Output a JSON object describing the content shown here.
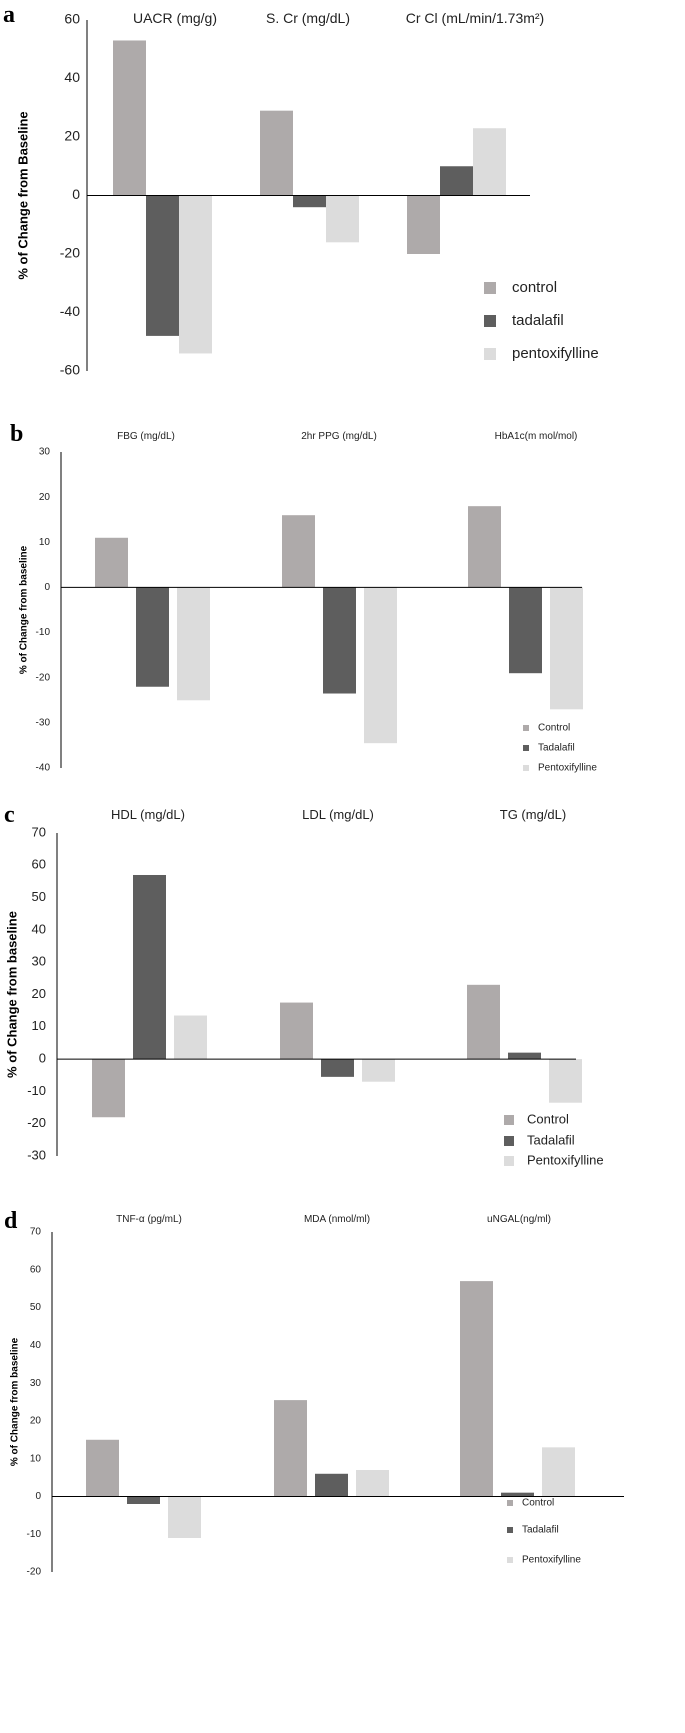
{
  "colors": {
    "control": "#aeaaaa",
    "tadalafil": "#5e5e5e",
    "pentoxifylline": "#dcdcdc",
    "axis": "#000000",
    "text": "#222222"
  },
  "chart_data": [
    {
      "type": "bar",
      "panel": "a",
      "categories": [
        "UACR (mg/g)",
        "S. Cr (mg/dL)",
        "Cr Cl (mL/min/1.73m²)"
      ],
      "series": [
        {
          "name": "control",
          "values": [
            53,
            29,
            -20
          ]
        },
        {
          "name": "tadalafil",
          "values": [
            -48,
            -4,
            10
          ]
        },
        {
          "name": "pentoxifylline",
          "values": [
            -54,
            -16,
            23
          ]
        }
      ],
      "title": "",
      "xlabel": "",
      "ylabel": "% of Change from Baseline",
      "ylim": [
        -60,
        60
      ],
      "yticks": [
        60,
        40,
        20,
        0,
        -20,
        -40,
        -60
      ],
      "legend": "bottom-right",
      "grid": false
    },
    {
      "type": "bar",
      "panel": "b",
      "categories": [
        "FBG (mg/dL)",
        "2hr PPG (mg/dL)",
        "HbA1c(m mol/mol)"
      ],
      "series": [
        {
          "name": "Control",
          "values": [
            11,
            16,
            18
          ]
        },
        {
          "name": "Tadalafil",
          "values": [
            -22,
            -23.5,
            -19
          ]
        },
        {
          "name": "Pentoxifylline",
          "values": [
            -25,
            -34.5,
            -27
          ]
        }
      ],
      "title": "",
      "xlabel": "",
      "ylabel": "% of Change from baseline",
      "ylim": [
        -40,
        30
      ],
      "yticks": [
        30,
        20,
        10,
        0,
        -10,
        -20,
        -30,
        -40
      ],
      "legend": "bottom-right",
      "grid": false
    },
    {
      "type": "bar",
      "panel": "c",
      "categories": [
        "HDL (mg/dL)",
        "LDL (mg/dL)",
        "TG (mg/dL)"
      ],
      "series": [
        {
          "name": "Control",
          "values": [
            -18,
            17.5,
            23
          ]
        },
        {
          "name": "Tadalafil",
          "values": [
            57,
            -5.5,
            2
          ]
        },
        {
          "name": "Pentoxifylline",
          "values": [
            13.5,
            -7,
            -13.5
          ]
        }
      ],
      "title": "",
      "xlabel": "",
      "ylabel": "% of Change from baseline",
      "ylim": [
        -30,
        70
      ],
      "yticks": [
        70,
        60,
        50,
        40,
        30,
        20,
        10,
        0,
        -10,
        -20,
        -30
      ],
      "legend": "bottom-right",
      "grid": false
    },
    {
      "type": "bar",
      "panel": "d",
      "categories": [
        "TNF-α (pg/mL)",
        "MDA (nmol/ml)",
        "uNGAL(ng/ml)"
      ],
      "series": [
        {
          "name": "Control",
          "values": [
            15,
            25.5,
            57
          ]
        },
        {
          "name": "Tadalafil",
          "values": [
            -2,
            6,
            1
          ]
        },
        {
          "name": "Pentoxifylline",
          "values": [
            -11,
            7,
            13
          ]
        }
      ],
      "title": "",
      "xlabel": "",
      "ylabel": "% of Change from baseline",
      "ylim": [
        -20,
        70
      ],
      "yticks": [
        70,
        60,
        50,
        40,
        30,
        20,
        10,
        0,
        -10,
        -20
      ],
      "legend": "bottom-right",
      "grid": false
    }
  ]
}
